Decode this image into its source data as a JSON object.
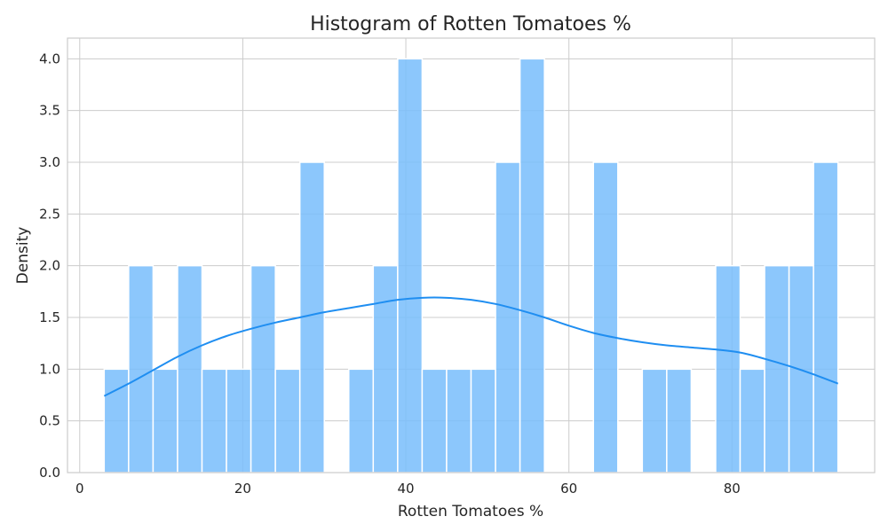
{
  "chart_data": {
    "type": "histogram",
    "title": "Histogram of Rotten Tomatoes %",
    "xlabel": "Rotten Tomatoes %",
    "ylabel": "Density",
    "xlim": [
      -1.5,
      97.5
    ],
    "ylim": [
      0,
      4.2
    ],
    "xticks": [
      0,
      20,
      40,
      60,
      80
    ],
    "yticks": [
      0.0,
      0.5,
      1.0,
      1.5,
      2.0,
      2.5,
      3.0,
      3.5,
      4.0
    ],
    "ytick_labels": [
      "0.0",
      "0.5",
      "1.0",
      "1.5",
      "2.0",
      "2.5",
      "3.0",
      "3.5",
      "4.0"
    ],
    "grid": true,
    "bins": {
      "start": 3,
      "width": 3,
      "counts": [
        1,
        2,
        1,
        2,
        1,
        1,
        2,
        1,
        3,
        0,
        1,
        2,
        4,
        1,
        1,
        1,
        3,
        4,
        0,
        0,
        3,
        0,
        1,
        1,
        0,
        2,
        1,
        2,
        2,
        3
      ]
    },
    "kde": {
      "x": [
        3,
        6,
        9,
        12,
        15,
        18,
        21,
        24,
        27,
        30,
        33,
        36,
        39,
        42,
        45,
        48,
        51,
        54,
        57,
        60,
        63,
        66,
        69,
        72,
        75,
        78,
        81,
        84,
        87,
        90,
        93
      ],
      "y": [
        0.74,
        0.86,
        0.99,
        1.12,
        1.23,
        1.32,
        1.39,
        1.45,
        1.5,
        1.55,
        1.59,
        1.63,
        1.67,
        1.69,
        1.69,
        1.67,
        1.63,
        1.57,
        1.5,
        1.42,
        1.35,
        1.3,
        1.26,
        1.23,
        1.21,
        1.19,
        1.16,
        1.1,
        1.03,
        0.95,
        0.86
      ]
    },
    "colors": {
      "bar": "#78bdfb",
      "line": "#1f8ef1"
    }
  }
}
